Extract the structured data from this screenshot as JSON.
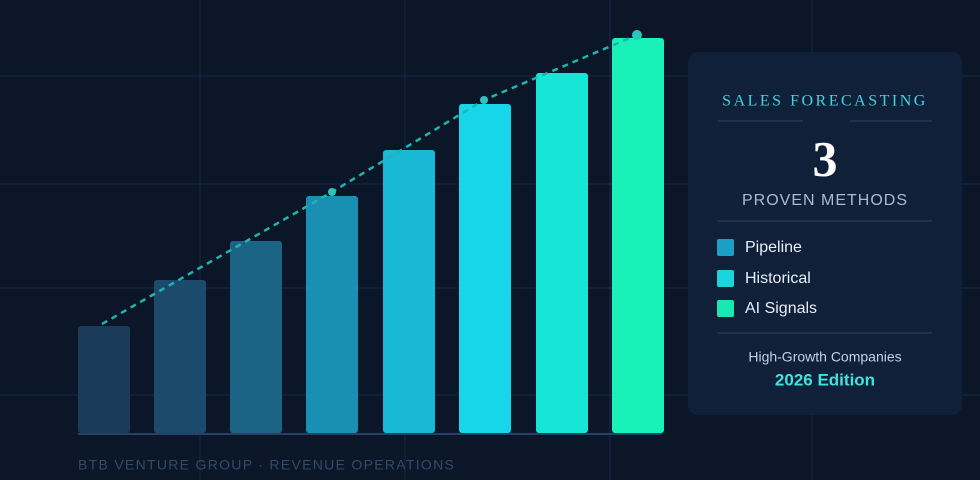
{
  "panel": {
    "title": "SALES FORECASTING",
    "number": "3",
    "subtitle": "PROVEN METHODS",
    "methods": [
      "Pipeline",
      "Historical",
      "AI Signals"
    ],
    "audience": "High-Growth Companies",
    "edition": "2026 Edition"
  },
  "footer": "BTB VENTURE GROUP · REVENUE OPERATIONS"
}
